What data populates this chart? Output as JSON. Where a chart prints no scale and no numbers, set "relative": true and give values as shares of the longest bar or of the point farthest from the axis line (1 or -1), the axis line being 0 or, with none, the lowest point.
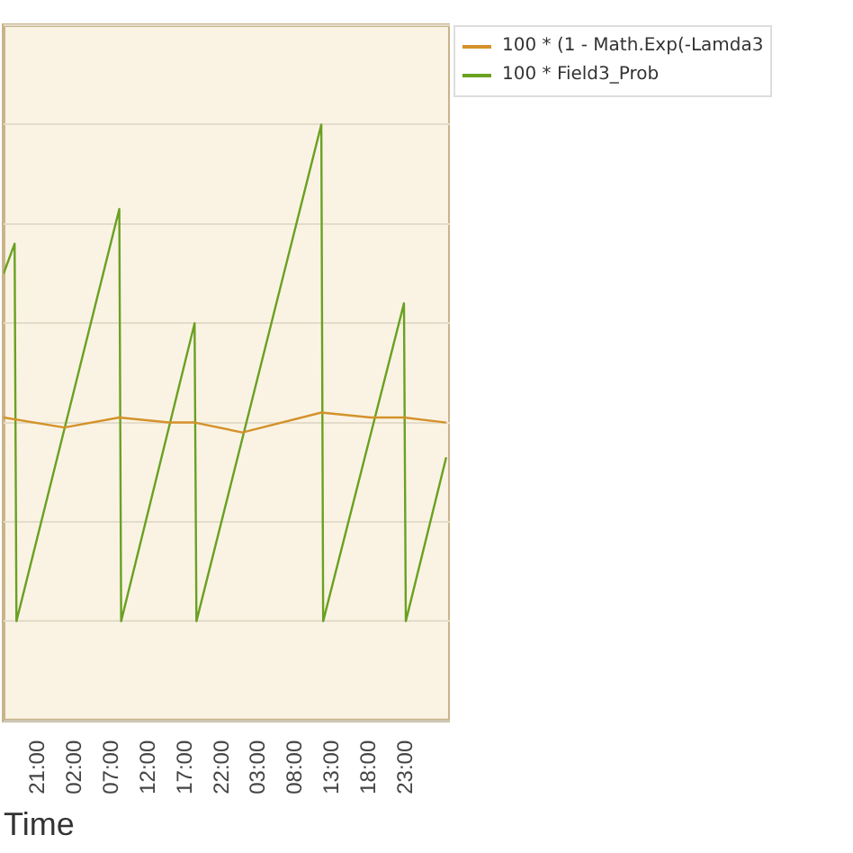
{
  "chart_data": {
    "type": "line",
    "xlabel": "Time",
    "relative": true,
    "grid": "y",
    "legend": "right",
    "marker": "none",
    "line_style": "solid",
    "xlim": [
      "2000-01-01T16:15",
      "2000-01-04T05:00"
    ],
    "xticks": [
      {
        "value": "2000-01-01T21:00",
        "label": "21:00"
      },
      {
        "value": "2000-01-02T02:00",
        "label": "02:00"
      },
      {
        "value": "2000-01-02T07:00",
        "label": "07:00"
      },
      {
        "value": "2000-01-02T12:00",
        "label": "12:00"
      },
      {
        "value": "2000-01-02T17:00",
        "label": "17:00"
      },
      {
        "value": "2000-01-02T22:00",
        "label": "22:00"
      },
      {
        "value": "2000-01-03T03:00",
        "label": "03:00"
      },
      {
        "value": "2000-01-03T08:00",
        "label": "08:00"
      },
      {
        "value": "2000-01-03T13:00",
        "label": "13:00"
      },
      {
        "value": "2000-01-03T18:00",
        "label": "18:00"
      },
      {
        "value": "2000-01-03T23:00",
        "label": "23:00"
      }
    ],
    "series": [
      {
        "name": "100 * (1 - Math.Exp(-Lamda3",
        "color": "#d4922a",
        "x": [
          "2000-01-01T16:15",
          "2000-01-02T00:30",
          "2000-01-02T08:00",
          "2000-01-02T14:45",
          "2000-01-02T18:15",
          "2000-01-03T00:45",
          "2000-01-03T11:30",
          "2000-01-03T18:15",
          "2000-01-03T22:45",
          "2000-01-04T04:30"
        ],
        "values": [
          0.41,
          0.39,
          0.41,
          0.4,
          0.4,
          0.38,
          0.42,
          0.41,
          0.41,
          0.4
        ]
      },
      {
        "name": "100 * Field3_Prob",
        "color": "#6aa121",
        "x": [
          "2000-01-01T16:15",
          "2000-01-01T17:45",
          "2000-01-01T18:00",
          "2000-01-02T08:00",
          "2000-01-02T08:15",
          "2000-01-02T18:15",
          "2000-01-02T18:30",
          "2000-01-03T11:30",
          "2000-01-03T11:45",
          "2000-01-03T22:45",
          "2000-01-03T23:00",
          "2000-01-04T04:30"
        ],
        "values": [
          0.7,
          0.76,
          0,
          0.83,
          0,
          0.6,
          0,
          1,
          0,
          0.64,
          0,
          0.33
        ]
      }
    ]
  }
}
